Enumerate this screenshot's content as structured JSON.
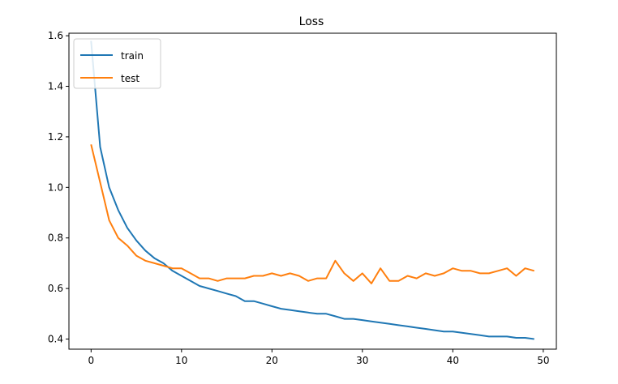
{
  "chart_data": {
    "type": "line",
    "title": "Loss",
    "xlabel": "",
    "ylabel": "",
    "xlim": [
      -2.45,
      51.45
    ],
    "ylim": [
      0.36,
      1.61
    ],
    "xticks": [
      0,
      10,
      20,
      30,
      40,
      50
    ],
    "yticks": [
      0.4,
      0.6,
      0.8,
      1.0,
      1.2,
      1.4,
      1.6
    ],
    "ytick_labels": [
      "0.4",
      "0.6",
      "0.8",
      "1.0",
      "1.2",
      "1.4",
      "1.6"
    ],
    "grid": false,
    "legend_position": "upper-left",
    "x": [
      0,
      1,
      2,
      3,
      4,
      5,
      6,
      7,
      8,
      9,
      10,
      11,
      12,
      13,
      14,
      15,
      16,
      17,
      18,
      19,
      20,
      21,
      22,
      23,
      24,
      25,
      26,
      27,
      28,
      29,
      30,
      31,
      32,
      33,
      34,
      35,
      36,
      37,
      38,
      39,
      40,
      41,
      42,
      43,
      44,
      45,
      46,
      47,
      48,
      49
    ],
    "series": [
      {
        "name": "train",
        "color": "#1f77b4",
        "values": [
          1.58,
          1.16,
          1.0,
          0.91,
          0.84,
          0.79,
          0.75,
          0.72,
          0.7,
          0.67,
          0.65,
          0.63,
          0.61,
          0.6,
          0.59,
          0.58,
          0.57,
          0.55,
          0.55,
          0.54,
          0.53,
          0.52,
          0.515,
          0.51,
          0.505,
          0.5,
          0.5,
          0.49,
          0.48,
          0.48,
          0.475,
          0.47,
          0.465,
          0.46,
          0.455,
          0.45,
          0.445,
          0.44,
          0.435,
          0.43,
          0.43,
          0.425,
          0.42,
          0.415,
          0.41,
          0.41,
          0.41,
          0.405,
          0.405,
          0.4
        ]
      },
      {
        "name": "test",
        "color": "#ff7f0e",
        "values": [
          1.17,
          1.02,
          0.87,
          0.8,
          0.77,
          0.73,
          0.71,
          0.7,
          0.69,
          0.68,
          0.68,
          0.66,
          0.64,
          0.64,
          0.63,
          0.64,
          0.64,
          0.64,
          0.65,
          0.65,
          0.66,
          0.65,
          0.66,
          0.65,
          0.63,
          0.64,
          0.64,
          0.71,
          0.66,
          0.63,
          0.66,
          0.62,
          0.68,
          0.63,
          0.63,
          0.65,
          0.64,
          0.66,
          0.65,
          0.66,
          0.68,
          0.67,
          0.67,
          0.66,
          0.66,
          0.67,
          0.68,
          0.65,
          0.68,
          0.67
        ]
      }
    ]
  }
}
